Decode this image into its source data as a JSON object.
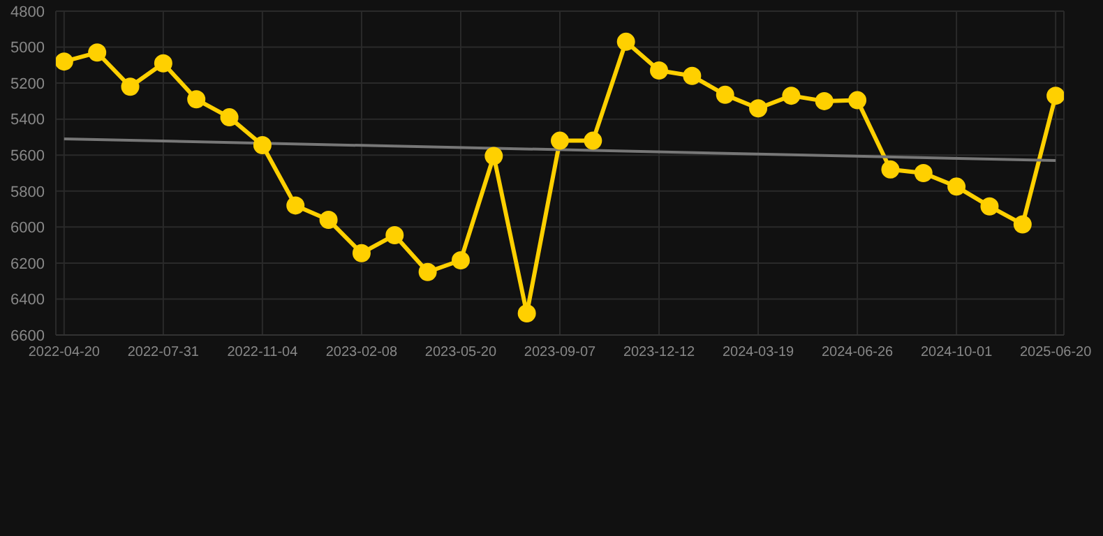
{
  "chart_data": {
    "type": "line",
    "categories": [
      "2022-04-20",
      null,
      null,
      "2022-07-31",
      null,
      null,
      "2022-11-04",
      null,
      null,
      "2023-02-08",
      null,
      null,
      "2023-05-20",
      null,
      null,
      "2023-09-07",
      null,
      null,
      "2023-12-12",
      null,
      null,
      "2024-03-19",
      null,
      null,
      "2024-06-26",
      null,
      null,
      "2024-10-01",
      null,
      null,
      "2025-06-20"
    ],
    "series": [
      {
        "color": "#ffd000",
        "values": [
          5080,
          5030,
          5220,
          5090,
          5290,
          5390,
          5545,
          5880,
          5960,
          6145,
          6045,
          6250,
          6185,
          5605,
          6480,
          5520,
          5520,
          4970,
          5130,
          5160,
          5265,
          5340,
          5270,
          5300,
          5295,
          5680,
          5700,
          5775,
          5885,
          5985,
          5270
        ]
      },
      {
        "type": "line",
        "color": "#777777",
        "marker": "none",
        "values": [
          5510,
          null,
          null,
          null,
          null,
          null,
          null,
          null,
          null,
          null,
          null,
          null,
          null,
          null,
          null,
          null,
          null,
          null,
          null,
          null,
          null,
          null,
          null,
          null,
          null,
          null,
          null,
          null,
          null,
          null,
          5630
        ]
      }
    ],
    "ylim": [
      6600,
      4800
    ],
    "yticks": [
      4800,
      5000,
      5200,
      5400,
      5600,
      5800,
      6000,
      6200,
      6400,
      6600
    ],
    "grid": true,
    "marker": "circle",
    "line_style": "solid"
  }
}
